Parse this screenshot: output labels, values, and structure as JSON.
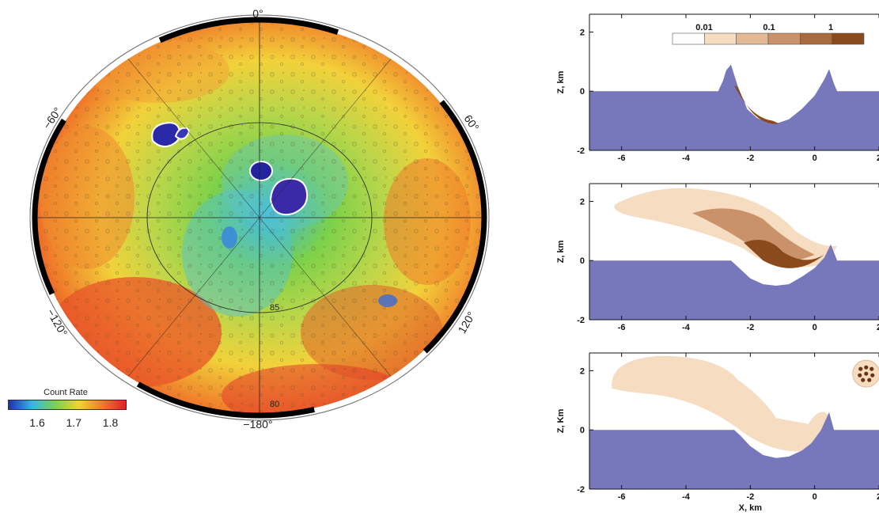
{
  "map": {
    "azimuth_labels": [
      "0°",
      "60°",
      "120°",
      "−180°",
      "−120°",
      "−60°"
    ],
    "latitude_labels": [
      "85",
      "80"
    ],
    "colors": {
      "frame": "#000000",
      "low": "#1f2fb0",
      "mid_low": "#35b7e8",
      "mid": "#7cd14a",
      "mid_high": "#f2d23a",
      "high": "#f07a2a",
      "max": "#d8242a"
    }
  },
  "colorbar": {
    "title": "Count Rate",
    "ticks": [
      "1.6",
      "1.7",
      "1.8"
    ],
    "range": [
      1.52,
      1.84
    ],
    "tick_values": [
      1.6,
      1.7,
      1.8
    ]
  },
  "chart_data": [
    {
      "type": "area",
      "panel": 1,
      "ylabel": "Z, km",
      "xlabel": "",
      "xlim": [
        -7,
        2
      ],
      "ylim": [
        -2,
        2.6
      ],
      "xticks": [
        "-6",
        "-4",
        "-2",
        "0",
        "2"
      ],
      "yticks": [
        "2",
        "0",
        "-2"
      ],
      "surface_profile": {
        "x": [
          -7,
          -3.0,
          -2.85,
          -2.75,
          -2.6,
          -2.4,
          -2.1,
          -1.8,
          -1.5,
          -1.2,
          -0.8,
          -0.4,
          0.0,
          0.3,
          0.45,
          0.6,
          0.7,
          2
        ],
        "z": [
          0.0,
          0.0,
          0.35,
          0.7,
          0.9,
          0.2,
          -0.6,
          -0.9,
          -1.05,
          -1.1,
          -0.95,
          -0.6,
          -0.15,
          0.4,
          0.75,
          0.25,
          0.0,
          0.0
        ]
      },
      "legend_labels": [
        "0.01",
        "0.1",
        "1"
      ],
      "legend_colors": [
        "#ffffff",
        "#f6dcc0",
        "#e3b894",
        "#c9926a",
        "#a86a3f",
        "#8a4a1c"
      ]
    },
    {
      "type": "area",
      "panel": 2,
      "ylabel": "Z, km",
      "xlabel": "",
      "xlim": [
        -7,
        2
      ],
      "ylim": [
        -2,
        2.6
      ],
      "xticks": [
        "-6",
        "-4",
        "-2",
        "0",
        "2"
      ],
      "yticks": [
        "2",
        "0",
        "-2"
      ],
      "surface_profile": {
        "x": [
          -7,
          -2.6,
          -2.3,
          -2.0,
          -1.6,
          -1.2,
          -0.8,
          -0.4,
          0.0,
          0.3,
          0.5,
          0.7,
          2
        ],
        "z": [
          0.0,
          0.0,
          -0.3,
          -0.6,
          -0.8,
          -0.85,
          -0.8,
          -0.55,
          -0.25,
          0.1,
          0.55,
          0.0,
          0.0
        ]
      }
    },
    {
      "type": "area",
      "panel": 3,
      "ylabel": "Z, Km",
      "xlabel": "X, km",
      "xlim": [
        -7,
        2
      ],
      "ylim": [
        -2,
        2.6
      ],
      "xticks": [
        "-6",
        "-4",
        "-2",
        "0",
        "2"
      ],
      "yticks": [
        "2",
        "0",
        "-2"
      ],
      "surface_profile": {
        "x": [
          -7,
          -2.5,
          -2.3,
          -2.0,
          -1.6,
          -1.2,
          -0.8,
          -0.4,
          -0.1,
          0.2,
          0.45,
          0.6,
          2
        ],
        "z": [
          0.0,
          0.0,
          -0.2,
          -0.55,
          -0.85,
          -0.95,
          -0.9,
          -0.7,
          -0.45,
          0.0,
          0.6,
          0.0,
          0.0
        ]
      }
    }
  ]
}
